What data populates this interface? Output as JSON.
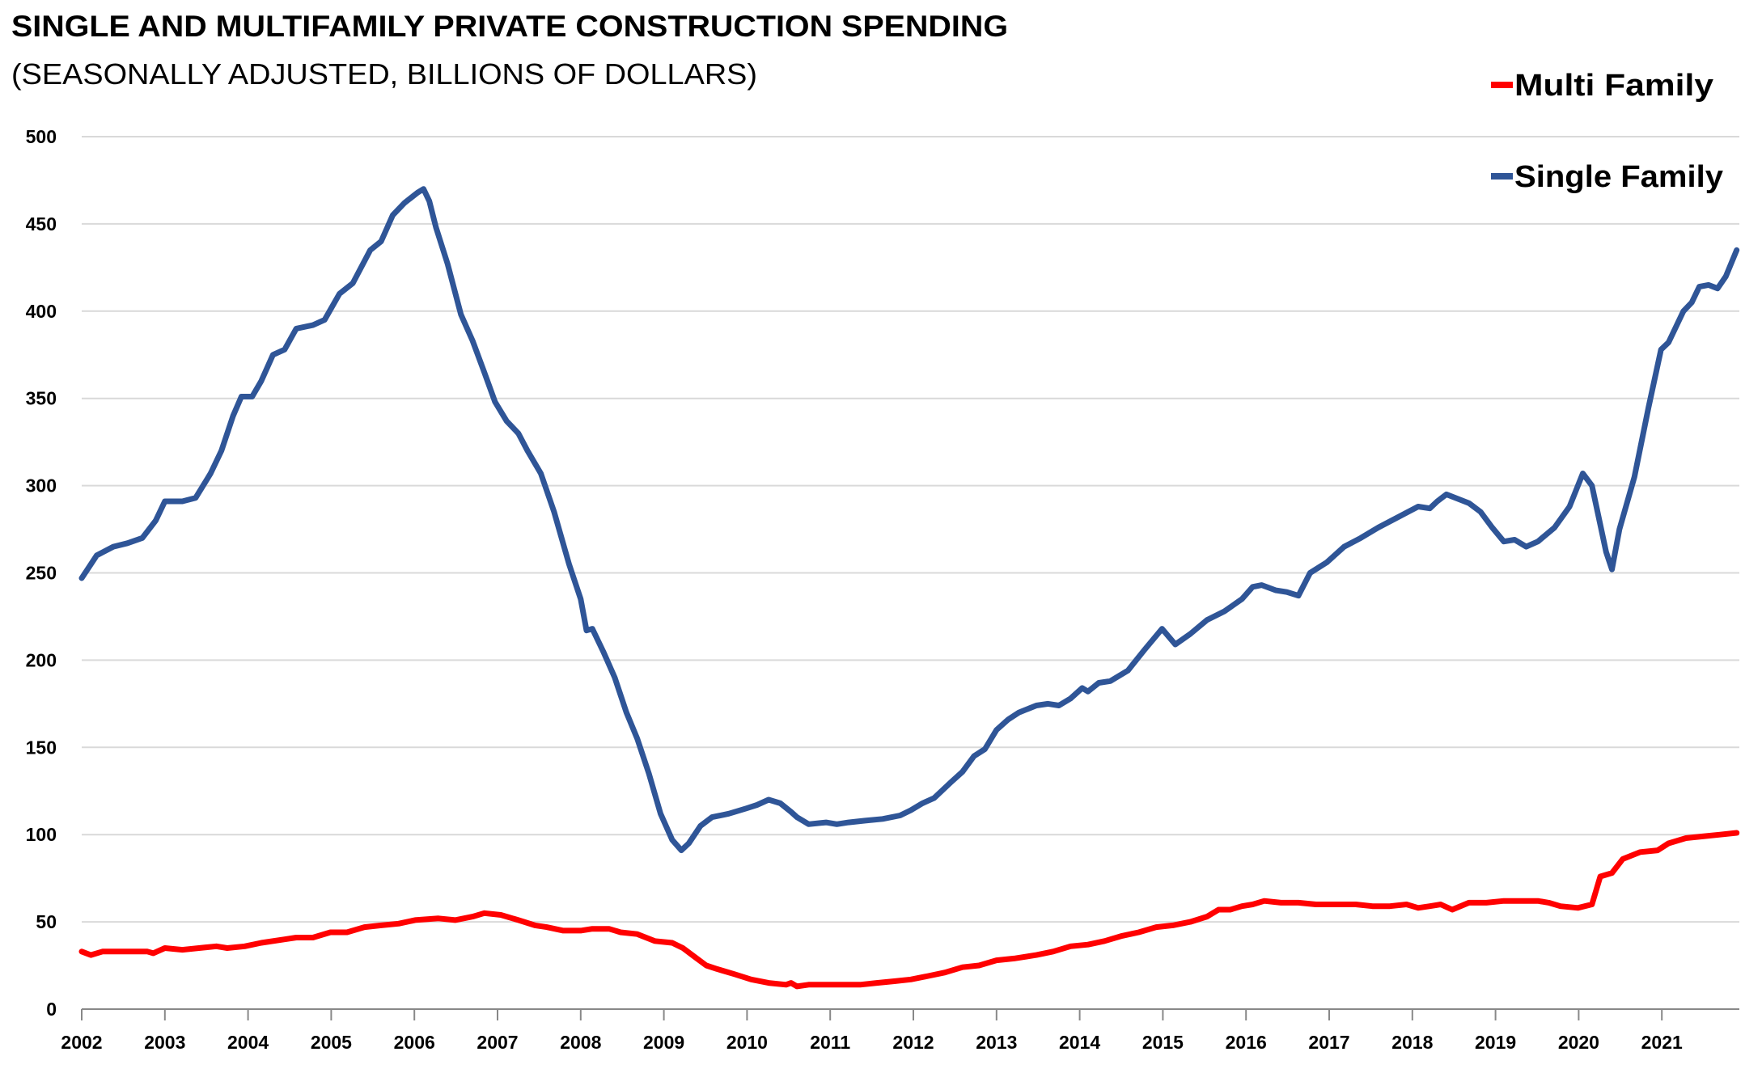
{
  "chart_data": {
    "type": "line",
    "title": "SINGLE AND MULTIFAMILY PRIVATE CONSTRUCTION SPENDING",
    "subtitle": "(SEASONALLY ADJUSTED, BILLIONS OF DOLLARS)",
    "xlabel": "",
    "ylabel": "",
    "xlim": [
      2002,
      2022
    ],
    "ylim": [
      0,
      500
    ],
    "yticks": [
      0,
      50,
      100,
      150,
      200,
      250,
      300,
      350,
      400,
      450,
      500
    ],
    "xticks": [
      "2002",
      "2003",
      "2004",
      "2005",
      "2006",
      "2007",
      "2008",
      "2009",
      "2010",
      "2011",
      "2012",
      "2013",
      "2014",
      "2015",
      "2016",
      "2017",
      "2018",
      "2019",
      "2020",
      "2021"
    ],
    "grid": true,
    "legend_position": "top-right",
    "series": [
      {
        "name": "Multi Family",
        "color": "#FF0000",
        "points": [
          [
            2002.0,
            33
          ],
          [
            2002.11,
            31
          ],
          [
            2002.25,
            33
          ],
          [
            2002.38,
            33
          ],
          [
            2002.59,
            33
          ],
          [
            2002.79,
            33
          ],
          [
            2002.86,
            32
          ],
          [
            2003.0,
            35
          ],
          [
            2003.21,
            34
          ],
          [
            2003.41,
            35
          ],
          [
            2003.62,
            36
          ],
          [
            2003.75,
            35
          ],
          [
            2003.96,
            36
          ],
          [
            2004.16,
            38
          ],
          [
            2004.44,
            40
          ],
          [
            2004.58,
            41
          ],
          [
            2004.78,
            41
          ],
          [
            2004.99,
            44
          ],
          [
            2005.19,
            44
          ],
          [
            2005.4,
            47
          ],
          [
            2005.6,
            48
          ],
          [
            2005.81,
            49
          ],
          [
            2006.01,
            51
          ],
          [
            2006.29,
            52
          ],
          [
            2006.49,
            51
          ],
          [
            2006.7,
            53
          ],
          [
            2006.84,
            55
          ],
          [
            2007.04,
            54
          ],
          [
            2007.25,
            51
          ],
          [
            2007.45,
            48
          ],
          [
            2007.59,
            47
          ],
          [
            2007.79,
            45
          ],
          [
            2008.0,
            45
          ],
          [
            2008.14,
            46
          ],
          [
            2008.34,
            46
          ],
          [
            2008.48,
            44
          ],
          [
            2008.68,
            43
          ],
          [
            2008.89,
            39
          ],
          [
            2009.1,
            38
          ],
          [
            2009.23,
            35
          ],
          [
            2009.37,
            30
          ],
          [
            2009.51,
            25
          ],
          [
            2009.64,
            23
          ],
          [
            2009.85,
            20
          ],
          [
            2010.05,
            17
          ],
          [
            2010.26,
            15
          ],
          [
            2010.47,
            14
          ],
          [
            2010.53,
            15
          ],
          [
            2010.6,
            13
          ],
          [
            2010.74,
            14
          ],
          [
            2010.95,
            14
          ],
          [
            2011.15,
            14
          ],
          [
            2011.36,
            14
          ],
          [
            2011.56,
            15
          ],
          [
            2011.77,
            16
          ],
          [
            2011.97,
            17
          ],
          [
            2012.18,
            19
          ],
          [
            2012.38,
            21
          ],
          [
            2012.59,
            24
          ],
          [
            2012.79,
            25
          ],
          [
            2013.0,
            28
          ],
          [
            2013.21,
            29
          ],
          [
            2013.48,
            31
          ],
          [
            2013.68,
            33
          ],
          [
            2013.89,
            36
          ],
          [
            2014.1,
            37
          ],
          [
            2014.3,
            39
          ],
          [
            2014.51,
            42
          ],
          [
            2014.71,
            44
          ],
          [
            2014.92,
            47
          ],
          [
            2015.12,
            48
          ],
          [
            2015.33,
            50
          ],
          [
            2015.53,
            53
          ],
          [
            2015.67,
            57
          ],
          [
            2015.81,
            57
          ],
          [
            2015.95,
            59
          ],
          [
            2016.08,
            60
          ],
          [
            2016.22,
            62
          ],
          [
            2016.42,
            61
          ],
          [
            2016.63,
            61
          ],
          [
            2016.84,
            60
          ],
          [
            2016.97,
            60
          ],
          [
            2017.11,
            60
          ],
          [
            2017.32,
            60
          ],
          [
            2017.52,
            59
          ],
          [
            2017.73,
            59
          ],
          [
            2017.93,
            60
          ],
          [
            2018.07,
            58
          ],
          [
            2018.21,
            59
          ],
          [
            2018.34,
            60
          ],
          [
            2018.48,
            57
          ],
          [
            2018.68,
            61
          ],
          [
            2018.89,
            61
          ],
          [
            2019.1,
            62
          ],
          [
            2019.3,
            62
          ],
          [
            2019.51,
            62
          ],
          [
            2019.64,
            61
          ],
          [
            2019.78,
            59
          ],
          [
            2019.99,
            58
          ],
          [
            2020.16,
            60
          ],
          [
            2020.26,
            76
          ],
          [
            2020.4,
            78
          ],
          [
            2020.53,
            86
          ],
          [
            2020.74,
            90
          ],
          [
            2020.95,
            91
          ],
          [
            2021.08,
            95
          ],
          [
            2021.29,
            98
          ],
          [
            2021.49,
            99
          ],
          [
            2021.7,
            100
          ],
          [
            2021.9,
            101
          ]
        ]
      },
      {
        "name": "Single Family",
        "color": "#2F5597",
        "points": [
          [
            2002.0,
            247
          ],
          [
            2002.18,
            260
          ],
          [
            2002.38,
            265
          ],
          [
            2002.55,
            267
          ],
          [
            2002.73,
            270
          ],
          [
            2002.89,
            280
          ],
          [
            2003.0,
            291
          ],
          [
            2003.21,
            291
          ],
          [
            2003.37,
            293
          ],
          [
            2003.55,
            307
          ],
          [
            2003.68,
            320
          ],
          [
            2003.82,
            340
          ],
          [
            2003.92,
            351
          ],
          [
            2004.05,
            351
          ],
          [
            2004.16,
            360
          ],
          [
            2004.3,
            375
          ],
          [
            2004.44,
            378
          ],
          [
            2004.58,
            390
          ],
          [
            2004.78,
            392
          ],
          [
            2004.92,
            395
          ],
          [
            2005.1,
            410
          ],
          [
            2005.26,
            416
          ],
          [
            2005.47,
            435
          ],
          [
            2005.6,
            440
          ],
          [
            2005.74,
            455
          ],
          [
            2005.88,
            462
          ],
          [
            2006.04,
            468
          ],
          [
            2006.11,
            470
          ],
          [
            2006.18,
            463
          ],
          [
            2006.26,
            448
          ],
          [
            2006.4,
            427
          ],
          [
            2006.56,
            398
          ],
          [
            2006.7,
            383
          ],
          [
            2006.84,
            365
          ],
          [
            2006.97,
            348
          ],
          [
            2007.11,
            337
          ],
          [
            2007.25,
            330
          ],
          [
            2007.36,
            320
          ],
          [
            2007.52,
            307
          ],
          [
            2007.68,
            285
          ],
          [
            2007.86,
            255
          ],
          [
            2008.0,
            235
          ],
          [
            2008.07,
            217
          ],
          [
            2008.14,
            218
          ],
          [
            2008.27,
            205
          ],
          [
            2008.41,
            190
          ],
          [
            2008.55,
            170
          ],
          [
            2008.68,
            155
          ],
          [
            2008.82,
            135
          ],
          [
            2008.96,
            112
          ],
          [
            2009.1,
            97
          ],
          [
            2009.21,
            91
          ],
          [
            2009.3,
            95
          ],
          [
            2009.44,
            105
          ],
          [
            2009.58,
            110
          ],
          [
            2009.78,
            112
          ],
          [
            2009.99,
            115
          ],
          [
            2010.12,
            117
          ],
          [
            2010.26,
            120
          ],
          [
            2010.4,
            118
          ],
          [
            2010.53,
            113
          ],
          [
            2010.6,
            110
          ],
          [
            2010.74,
            106
          ],
          [
            2010.95,
            107
          ],
          [
            2011.08,
            106
          ],
          [
            2011.22,
            107
          ],
          [
            2011.42,
            108
          ],
          [
            2011.63,
            109
          ],
          [
            2011.84,
            111
          ],
          [
            2011.97,
            114
          ],
          [
            2012.11,
            118
          ],
          [
            2012.25,
            121
          ],
          [
            2012.45,
            130
          ],
          [
            2012.59,
            136
          ],
          [
            2012.73,
            145
          ],
          [
            2012.86,
            149
          ],
          [
            2013.0,
            160
          ],
          [
            2013.14,
            166
          ],
          [
            2013.27,
            170
          ],
          [
            2013.48,
            174
          ],
          [
            2013.62,
            175
          ],
          [
            2013.75,
            174
          ],
          [
            2013.89,
            178
          ],
          [
            2014.03,
            184
          ],
          [
            2014.1,
            182
          ],
          [
            2014.23,
            187
          ],
          [
            2014.37,
            188
          ],
          [
            2014.58,
            194
          ],
          [
            2014.78,
            206
          ],
          [
            2014.99,
            218
          ],
          [
            2015.15,
            209
          ],
          [
            2015.33,
            215
          ],
          [
            2015.53,
            223
          ],
          [
            2015.74,
            228
          ],
          [
            2015.95,
            235
          ],
          [
            2016.08,
            242
          ],
          [
            2016.19,
            243
          ],
          [
            2016.36,
            240
          ],
          [
            2016.49,
            239
          ],
          [
            2016.63,
            237
          ],
          [
            2016.77,
            250
          ],
          [
            2016.97,
            256
          ],
          [
            2017.18,
            265
          ],
          [
            2017.38,
            270
          ],
          [
            2017.59,
            276
          ],
          [
            2017.79,
            281
          ],
          [
            2018.07,
            288
          ],
          [
            2018.21,
            287
          ],
          [
            2018.3,
            291
          ],
          [
            2018.41,
            295
          ],
          [
            2018.68,
            290
          ],
          [
            2018.82,
            285
          ],
          [
            2018.96,
            276
          ],
          [
            2019.1,
            268
          ],
          [
            2019.23,
            269
          ],
          [
            2019.37,
            265
          ],
          [
            2019.51,
            268
          ],
          [
            2019.71,
            276
          ],
          [
            2019.89,
            288
          ],
          [
            2020.05,
            307
          ],
          [
            2020.16,
            300
          ],
          [
            2020.33,
            262
          ],
          [
            2020.4,
            252
          ],
          [
            2020.49,
            275
          ],
          [
            2020.67,
            305
          ],
          [
            2020.84,
            345
          ],
          [
            2020.99,
            378
          ],
          [
            2021.08,
            382
          ],
          [
            2021.26,
            400
          ],
          [
            2021.36,
            405
          ],
          [
            2021.45,
            414
          ],
          [
            2021.56,
            415
          ],
          [
            2021.67,
            413
          ],
          [
            2021.77,
            420
          ],
          [
            2021.9,
            435
          ]
        ]
      }
    ]
  }
}
